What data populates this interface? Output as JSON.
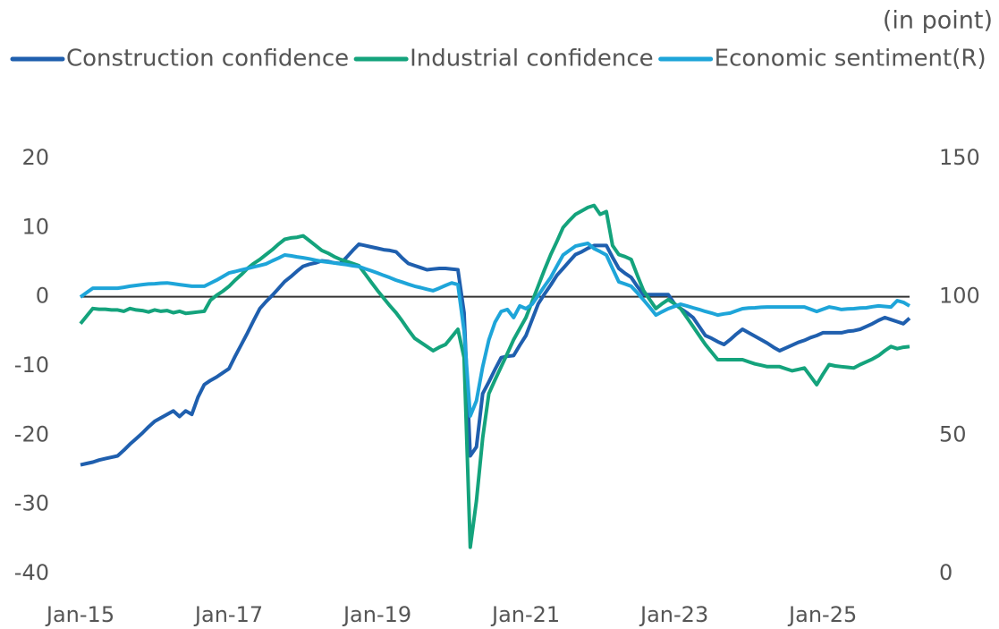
{
  "chart_data": {
    "type": "line",
    "unit_label": "(in point)",
    "legend": "top",
    "categories": [
      "Jan-15",
      null,
      null,
      null,
      null,
      null,
      null,
      null,
      null,
      null,
      null,
      null,
      null,
      null,
      null,
      null,
      null,
      null,
      null,
      null,
      null,
      null,
      null,
      null,
      "Jan-17",
      null,
      null,
      null,
      null,
      null,
      null,
      null,
      null,
      null,
      null,
      null,
      null,
      null,
      null,
      null,
      null,
      null,
      null,
      null,
      null,
      null,
      null,
      null,
      "Jan-19",
      null,
      null,
      null,
      null,
      null,
      null,
      null,
      null,
      null,
      null,
      null,
      null,
      null,
      null,
      null,
      null,
      null,
      null,
      null,
      null,
      null,
      null,
      null,
      "Jan-21",
      null,
      null,
      null,
      null,
      null,
      null,
      null,
      null,
      null,
      null,
      null,
      null,
      null,
      null,
      null,
      null,
      null,
      null,
      null,
      null,
      null,
      null,
      null,
      "Jan-23",
      null,
      null,
      null,
      null,
      null,
      null,
      null,
      null,
      null,
      null,
      null,
      null,
      null,
      null,
      null,
      null,
      null,
      null,
      null,
      null,
      null,
      null,
      null,
      "Jan-25",
      null,
      null,
      null,
      null,
      null,
      null,
      null,
      null,
      null,
      null,
      null,
      null,
      null,
      null
    ],
    "ylim": [
      -40,
      20
    ],
    "yticks": [
      -40,
      -30,
      -20,
      -10,
      0,
      10,
      20
    ],
    "y2lim": [
      0,
      150
    ],
    "y2ticks": [
      0,
      50,
      100,
      150
    ],
    "series": [
      {
        "name": "Construction confidence",
        "color": "#1f5fae",
        "values": [
          -24.3,
          -24.1,
          -23.9,
          -23.6,
          -23.4,
          -23.2,
          -23,
          -22.2,
          -21.3,
          -20.5,
          -19.7,
          -18.8,
          -18,
          -17.5,
          -17,
          -16.5,
          -17.3,
          -16.5,
          -17,
          -14.5,
          -12.7,
          -12.1,
          -11.6,
          -11,
          -10.4,
          -8.6,
          -6.9,
          -5.2,
          -3.4,
          -1.7,
          -0.7,
          0.2,
          1.2,
          2.2,
          2.9,
          3.7,
          4.4,
          4.7,
          4.9,
          5.2,
          5.1,
          4.9,
          4.8,
          5.7,
          6.7,
          7.6,
          7.4,
          7.2,
          7,
          6.8,
          6.7,
          6.5,
          5.6,
          4.8,
          4.5,
          4.2,
          3.9,
          4,
          4.1,
          4.1,
          4,
          3.9,
          -2.3,
          -23,
          -21.7,
          -14,
          -12.3,
          -10.5,
          -8.8,
          -8.6,
          -8.5,
          -7,
          -5.6,
          -3.3,
          -1,
          0.4,
          1.7,
          3.1,
          4.1,
          5.1,
          6.1,
          6.5,
          7,
          7.4,
          7.4,
          7.4,
          5.7,
          4.1,
          3.4,
          2.8,
          1.5,
          0.3,
          0.3,
          0.3,
          0.3,
          0.3,
          -1,
          -1.7,
          -2.3,
          -3,
          -4.3,
          -5.6,
          -6,
          -6.5,
          -6.9,
          -6.2,
          -5.4,
          -4.7,
          -5.2,
          -5.7,
          -6.2,
          -6.7,
          -7.3,
          -7.8,
          -7.4,
          -7,
          -6.6,
          -6.3,
          -5.9,
          -5.6,
          -5.2,
          -5.2,
          -5.2,
          -5.2,
          -5,
          -4.9,
          -4.7,
          -4.3,
          -3.9,
          -3.4,
          -3,
          -3.3,
          -3.6,
          -3.9,
          -3.1
        ]
      },
      {
        "name": "Industrial confidence",
        "color": "#14a37c",
        "values": [
          -3.9,
          -2.8,
          -1.7,
          -1.8,
          -1.8,
          -1.9,
          -1.9,
          -2.1,
          -1.7,
          -1.9,
          -2,
          -2.2,
          -1.9,
          -2.1,
          -2,
          -2.3,
          -2.1,
          -2.4,
          -2.3,
          -2.2,
          -2.1,
          -0.5,
          0.2,
          0.8,
          1.5,
          2.4,
          3.2,
          4.1,
          4.8,
          5.4,
          6.1,
          6.8,
          7.6,
          8.3,
          8.5,
          8.6,
          8.8,
          8.1,
          7.4,
          6.7,
          6.3,
          5.8,
          5.4,
          5.1,
          4.8,
          4.5,
          3.3,
          2.1,
          0.9,
          -0.2,
          -1.3,
          -2.3,
          -3.5,
          -4.8,
          -6,
          -6.6,
          -7.2,
          -7.8,
          -7.3,
          -6.9,
          -5.8,
          -4.7,
          -8.8,
          -36.2,
          -29.5,
          -20.4,
          -14,
          -12,
          -10.1,
          -8.2,
          -6.2,
          -4.6,
          -3,
          -0.7,
          1.6,
          3.9,
          6.1,
          8,
          10,
          11,
          11.9,
          12.4,
          12.9,
          13.2,
          11.9,
          12.3,
          7.4,
          6.1,
          5.8,
          5.4,
          3.1,
          0.9,
          -0.4,
          -1.7,
          -1,
          -0.4,
          -1,
          -1.7,
          -3,
          -4.3,
          -5.6,
          -6.9,
          -8,
          -9.1,
          -9.1,
          -9.1,
          -9.1,
          -9.1,
          -9.4,
          -9.7,
          -9.9,
          -10.1,
          -10.1,
          -10.1,
          -10.4,
          -10.7,
          -10.5,
          -10.3,
          -11.5,
          -12.7,
          -11.2,
          -9.8,
          -10,
          -10.1,
          -10.2,
          -10.3,
          -9.8,
          -9.4,
          -9,
          -8.5,
          -7.8,
          -7.2,
          -7.5,
          -7.3,
          -7.2
        ]
      },
      {
        "name": "Economic sentiment(R)",
        "color": "#1ea5d9",
        "axis": "y2",
        "values": [
          99.9,
          101.5,
          103.1,
          103.1,
          103.1,
          103.1,
          103.1,
          103.4,
          103.8,
          104.1,
          104.4,
          104.6,
          104.7,
          104.9,
          105,
          104.7,
          104.4,
          104.1,
          103.8,
          103.8,
          103.8,
          104.9,
          106,
          107.3,
          108.6,
          109.1,
          109.7,
          110.2,
          110.8,
          111.3,
          111.9,
          113,
          114,
          115.1,
          114.8,
          114.4,
          114.1,
          113.7,
          113.2,
          112.8,
          112.5,
          112.2,
          111.9,
          111.6,
          111.2,
          110.9,
          110.1,
          109.4,
          108.6,
          107.7,
          106.9,
          106,
          105.3,
          104.5,
          103.8,
          103.3,
          102.7,
          102.2,
          103.1,
          104.1,
          105,
          104.4,
          87.6,
          56.9,
          62.4,
          74.7,
          84.4,
          90.8,
          94.7,
          95.4,
          92.5,
          96.7,
          95.7,
          97.3,
          100.5,
          103.8,
          107,
          111.1,
          115.1,
          116.7,
          118.3,
          118.8,
          119.3,
          117.4,
          116.3,
          115.1,
          110.2,
          105.4,
          104.6,
          103.8,
          101.4,
          98.9,
          96.2,
          93.4,
          94.6,
          95.7,
          96.5,
          97.3,
          96.7,
          96,
          95.4,
          94.7,
          94.1,
          93.4,
          93.8,
          94.1,
          94.9,
          95.7,
          95.9,
          96,
          96.2,
          96.3,
          96.3,
          96.3,
          96.3,
          96.3,
          96.3,
          96.3,
          95.5,
          94.7,
          95.5,
          96.3,
          95.9,
          95.4,
          95.6,
          95.7,
          95.9,
          96,
          96.4,
          96.7,
          96.5,
          96.3,
          98.6,
          98,
          96.7
        ]
      }
    ]
  }
}
